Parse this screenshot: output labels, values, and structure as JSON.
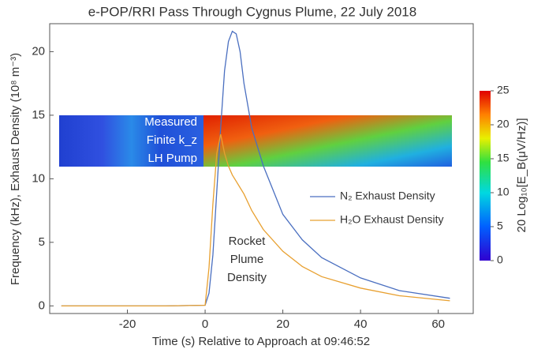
{
  "chart_data": {
    "type": "line",
    "title": "e-POP/RRI Pass Through Cygnus Plume, 22 July 2018",
    "x_label": "Time (s) Relative to Approach at 09:46:52",
    "y_label": "Frequency (kHz), Exhaust Density (10⁸ m⁻³)",
    "x": [
      -37,
      -20,
      -10,
      0,
      1,
      2,
      3,
      4,
      5,
      6,
      7,
      8,
      9,
      10,
      12,
      15,
      20,
      25,
      30,
      40,
      50,
      63
    ],
    "series": [
      {
        "name": "N₂ Exhaust Density",
        "color": "#4a6fc0",
        "values": [
          0,
          0,
          0,
          0.05,
          1,
          4,
          9,
          14,
          18.5,
          20.8,
          21.6,
          21.4,
          20,
          17.5,
          14,
          11,
          7.2,
          5.2,
          3.8,
          2.2,
          1.2,
          0.6
        ]
      },
      {
        "name": "H₂O Exhaust Density",
        "color": "#e8a030",
        "values": [
          0,
          0,
          0,
          0.05,
          3,
          8,
          12,
          13.5,
          12,
          11,
          10.3,
          9.8,
          9.3,
          8.8,
          7.5,
          6,
          4.3,
          3.1,
          2.3,
          1.4,
          0.8,
          0.4
        ]
      }
    ],
    "xlim": [
      -40,
      69
    ],
    "xticks": [
      -20,
      0,
      20,
      40,
      60
    ],
    "ylim": [
      -0.6,
      22.2
    ],
    "yticks": [
      0,
      5,
      10,
      15,
      20
    ],
    "annotations": {
      "spectrogram": [
        "Measured",
        "Finite k_z",
        "LH Pump"
      ],
      "plume": [
        "Rocket",
        "Plume",
        "Density"
      ]
    },
    "colorbar": {
      "label": "20 Log₁₀[E_B(μV/Hz)]",
      "lim": [
        0,
        25
      ],
      "ticks": [
        0,
        5,
        10,
        15,
        20,
        25
      ]
    }
  }
}
